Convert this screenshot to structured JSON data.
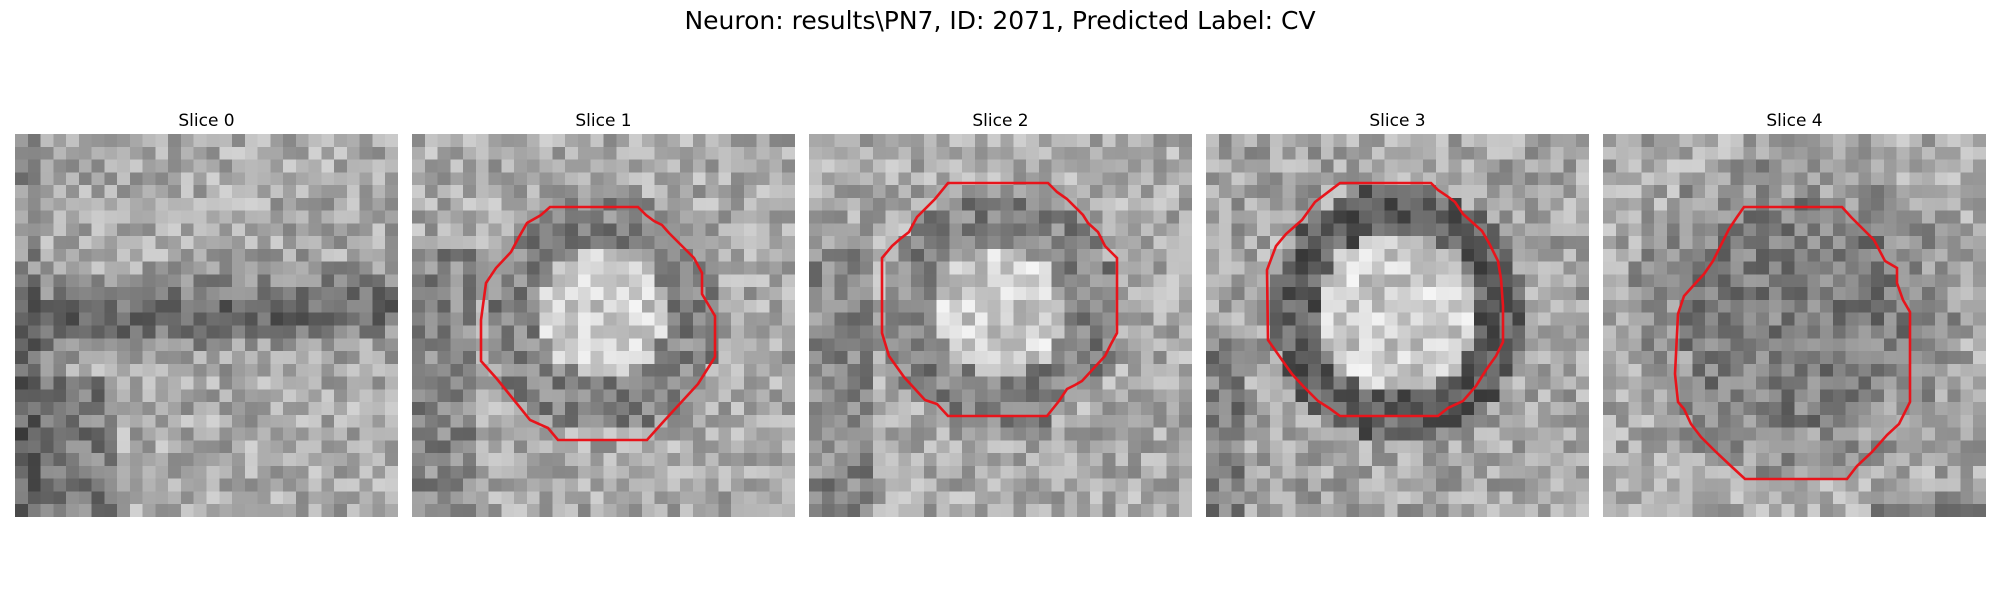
{
  "figure": {
    "title": "Neuron: results\\PN7, ID: 2071, Predicted Label: CV",
    "contour_color": "#e8141b"
  },
  "slices": [
    {
      "label": "Slice 0",
      "has_contour": false,
      "pattern": "band"
    },
    {
      "label": "Slice 1",
      "has_contour": true,
      "pattern": "ring-bright-center"
    },
    {
      "label": "Slice 2",
      "has_contour": true,
      "pattern": "ring-bright-center"
    },
    {
      "label": "Slice 3",
      "has_contour": true,
      "pattern": "ring-dark-edge"
    },
    {
      "label": "Slice 4",
      "has_contour": true,
      "pattern": "ring-dim"
    }
  ]
}
